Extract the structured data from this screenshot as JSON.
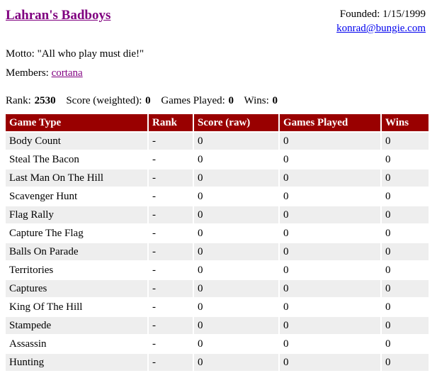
{
  "page": {
    "title": "Lahran's Badboys",
    "founded": "Founded: 1/15/1999",
    "contact_email": "konrad@bungie.com",
    "motto_label": "Motto:",
    "motto": "\"All who play must die!\"",
    "members_label": "Members:",
    "member": "cortana",
    "stats": [
      {
        "label": "Rank:",
        "value": "2530"
      },
      {
        "label": "Score (weighted):",
        "value": "0"
      },
      {
        "label": "Games Played:",
        "value": "0"
      },
      {
        "label": "Wins:",
        "value": "0"
      }
    ]
  },
  "table": {
    "headers": [
      "Game Type",
      "Rank",
      "Score (raw)",
      "Games Played",
      "Wins"
    ],
    "rows": [
      {
        "game_type": "Body Count",
        "rank": "-",
        "score": "0",
        "games_played": "0",
        "wins": "0"
      },
      {
        "game_type": "Steal The Bacon",
        "rank": "-",
        "score": "0",
        "games_played": "0",
        "wins": "0"
      },
      {
        "game_type": "Last Man On The Hill",
        "rank": "-",
        "score": "0",
        "games_played": "0",
        "wins": "0"
      },
      {
        "game_type": "Scavenger Hunt",
        "rank": "-",
        "score": "0",
        "games_played": "0",
        "wins": "0"
      },
      {
        "game_type": "Flag Rally",
        "rank": "-",
        "score": "0",
        "games_played": "0",
        "wins": "0"
      },
      {
        "game_type": "Capture The Flag",
        "rank": "-",
        "score": "0",
        "games_played": "0",
        "wins": "0"
      },
      {
        "game_type": "Balls On Parade",
        "rank": "-",
        "score": "0",
        "games_played": "0",
        "wins": "0"
      },
      {
        "game_type": "Territories",
        "rank": "-",
        "score": "0",
        "games_played": "0",
        "wins": "0"
      },
      {
        "game_type": "Captures",
        "rank": "-",
        "score": "0",
        "games_played": "0",
        "wins": "0"
      },
      {
        "game_type": "King Of The Hill",
        "rank": "-",
        "score": "0",
        "games_played": "0",
        "wins": "0"
      },
      {
        "game_type": "Stampede",
        "rank": "-",
        "score": "0",
        "games_played": "0",
        "wins": "0"
      },
      {
        "game_type": "Assassin",
        "rank": "-",
        "score": "0",
        "games_played": "0",
        "wins": "0"
      },
      {
        "game_type": "Hunting",
        "rank": "-",
        "score": "0",
        "games_played": "0",
        "wins": "0"
      }
    ]
  },
  "colors": {
    "table_header_bg": "#990000",
    "row_alt_bg": "#EEEEEE",
    "link_blue": "#0000EE",
    "link_purple": "#800080"
  }
}
